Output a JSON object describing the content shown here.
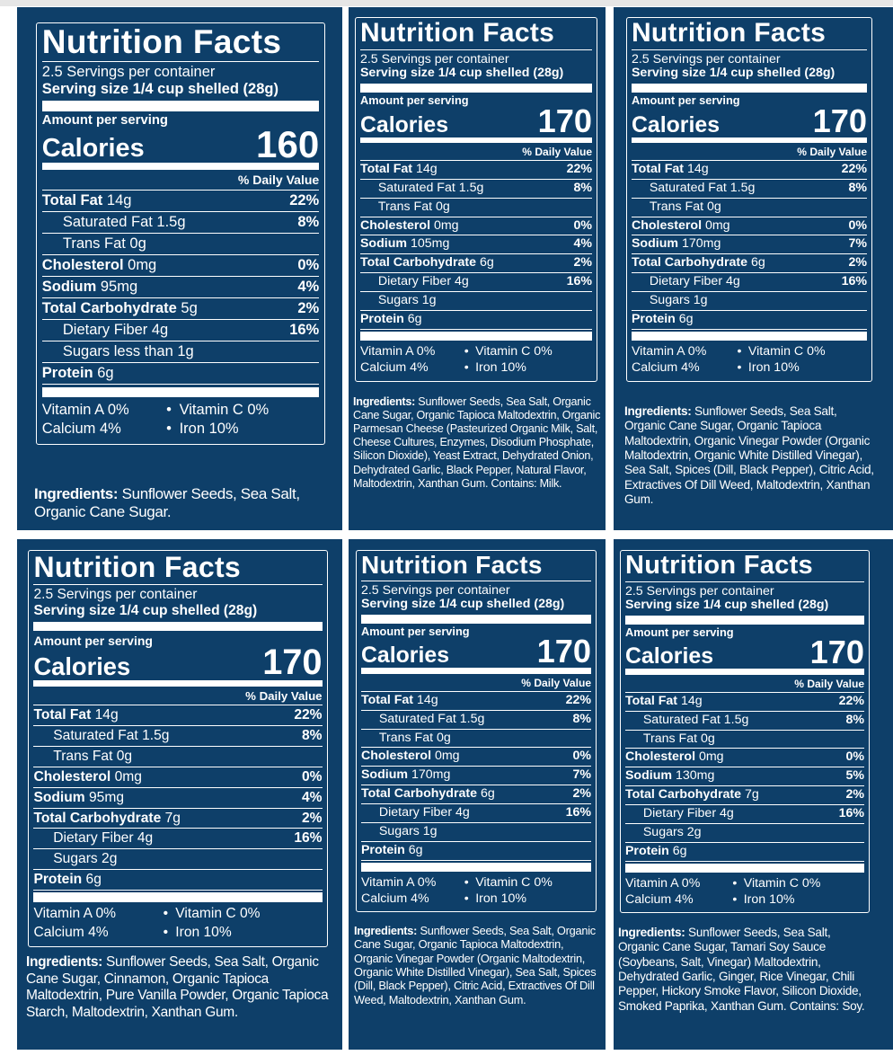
{
  "colors": {
    "background": "#0e3f69",
    "text": "#ffffff"
  },
  "common": {
    "title": "Nutrition Facts",
    "servings": "2.5 Servings per container",
    "serving_size": "Serving size 1/4 cup shelled (28g)",
    "amount": "Amount per serving",
    "calories_label": "Calories",
    "dv_header": "% Daily Value",
    "ingredients_label": "Ingredients:",
    "dot": "•"
  },
  "panels": [
    {
      "calories": "160",
      "rows": [
        {
          "label": "Total Fat",
          "amount": "14g",
          "dv": "22%",
          "bold": true,
          "indent": false
        },
        {
          "label": "Saturated Fat 1.5g",
          "amount": "",
          "dv": "8%",
          "bold": false,
          "indent": true
        },
        {
          "label": "Trans Fat 0g",
          "amount": "",
          "dv": "",
          "bold": false,
          "indent": true
        },
        {
          "label": "Cholesterol",
          "amount": "0mg",
          "dv": "0%",
          "bold": true,
          "indent": false
        },
        {
          "label": "Sodium",
          "amount": "95mg",
          "dv": "4%",
          "bold": true,
          "indent": false
        },
        {
          "label": "Total Carbohydrate",
          "amount": "5g",
          "dv": "2%",
          "bold": true,
          "indent": false
        },
        {
          "label": "Dietary Fiber 4g",
          "amount": "",
          "dv": "16%",
          "bold": false,
          "indent": true
        },
        {
          "label": "Sugars less than 1g",
          "amount": "",
          "dv": "",
          "bold": false,
          "indent": true
        },
        {
          "label": "Protein",
          "amount": "6g",
          "dv": "",
          "bold": true,
          "indent": false
        }
      ],
      "vitamins": [
        "Vitamin A 0%",
        "Vitamin C 0%",
        "Calcium 4%",
        "Iron 10%"
      ],
      "ingredients": "Sunflower Seeds, Sea Salt, Organic Cane Sugar."
    },
    {
      "calories": "170",
      "rows": [
        {
          "label": "Total Fat",
          "amount": "14g",
          "dv": "22%",
          "bold": true,
          "indent": false
        },
        {
          "label": "Saturated Fat 1.5g",
          "amount": "",
          "dv": "8%",
          "bold": false,
          "indent": true
        },
        {
          "label": "Trans Fat 0g",
          "amount": "",
          "dv": "",
          "bold": false,
          "indent": true
        },
        {
          "label": "Cholesterol",
          "amount": "0mg",
          "dv": "0%",
          "bold": true,
          "indent": false
        },
        {
          "label": "Sodium",
          "amount": "105mg",
          "dv": "4%",
          "bold": true,
          "indent": false
        },
        {
          "label": "Total Carbohydrate",
          "amount": "6g",
          "dv": "2%",
          "bold": true,
          "indent": false
        },
        {
          "label": "Dietary Fiber 4g",
          "amount": "",
          "dv": "16%",
          "bold": false,
          "indent": true
        },
        {
          "label": "Sugars 1g",
          "amount": "",
          "dv": "",
          "bold": false,
          "indent": true
        },
        {
          "label": "Protein",
          "amount": "6g",
          "dv": "",
          "bold": true,
          "indent": false
        }
      ],
      "vitamins": [
        "Vitamin A 0%",
        "Vitamin C 0%",
        "Calcium 4%",
        "Iron 10%"
      ],
      "ingredients": "Sunflower Seeds, Sea Salt, Organic Cane Sugar, Organic Tapioca Maltodextrin, Organic Parmesan Cheese (Pasteurized Organic Milk, Salt, Cheese Cultures, Enzymes, Disodium Phosphate, Silicon Dioxide), Yeast Extract, Dehydrated Onion, Dehydrated Garlic, Black Pepper, Natural Flavor, Maltodextrin, Xanthan Gum. Contains: Milk."
    },
    {
      "calories": "170",
      "rows": [
        {
          "label": "Total Fat",
          "amount": "14g",
          "dv": "22%",
          "bold": true,
          "indent": false
        },
        {
          "label": "Saturated Fat 1.5g",
          "amount": "",
          "dv": "8%",
          "bold": false,
          "indent": true
        },
        {
          "label": "Trans Fat 0g",
          "amount": "",
          "dv": "",
          "bold": false,
          "indent": true
        },
        {
          "label": "Cholesterol",
          "amount": "0mg",
          "dv": "0%",
          "bold": true,
          "indent": false
        },
        {
          "label": "Sodium",
          "amount": "170mg",
          "dv": "7%",
          "bold": true,
          "indent": false
        },
        {
          "label": "Total Carbohydrate",
          "amount": "6g",
          "dv": "2%",
          "bold": true,
          "indent": false
        },
        {
          "label": "Dietary Fiber 4g",
          "amount": "",
          "dv": "16%",
          "bold": false,
          "indent": true
        },
        {
          "label": "Sugars 1g",
          "amount": "",
          "dv": "",
          "bold": false,
          "indent": true
        },
        {
          "label": "Protein",
          "amount": "6g",
          "dv": "",
          "bold": true,
          "indent": false
        }
      ],
      "vitamins": [
        "Vitamin A 0%",
        "Vitamin C 0%",
        "Calcium 4%",
        "Iron 10%"
      ],
      "ingredients": "Sunflower Seeds, Sea Salt, Organic Cane Sugar, Organic Tapioca Maltodextrin, Organic Vinegar Powder (Organic Maltodextrin, Organic White Distilled Vinegar), Sea Salt, Spices (Dill, Black Pepper), Citric Acid, Extractives Of Dill Weed, Maltodextrin, Xanthan Gum."
    },
    {
      "calories": "170",
      "rows": [
        {
          "label": "Total Fat",
          "amount": "14g",
          "dv": "22%",
          "bold": true,
          "indent": false
        },
        {
          "label": "Saturated Fat 1.5g",
          "amount": "",
          "dv": "8%",
          "bold": false,
          "indent": true
        },
        {
          "label": "Trans Fat 0g",
          "amount": "",
          "dv": "",
          "bold": false,
          "indent": true
        },
        {
          "label": "Cholesterol",
          "amount": "0mg",
          "dv": "0%",
          "bold": true,
          "indent": false
        },
        {
          "label": "Sodium",
          "amount": "95mg",
          "dv": "4%",
          "bold": true,
          "indent": false
        },
        {
          "label": "Total Carbohydrate",
          "amount": "7g",
          "dv": "2%",
          "bold": true,
          "indent": false
        },
        {
          "label": "Dietary Fiber 4g",
          "amount": "",
          "dv": "16%",
          "bold": false,
          "indent": true
        },
        {
          "label": "Sugars 2g",
          "amount": "",
          "dv": "",
          "bold": false,
          "indent": true
        },
        {
          "label": "Protein",
          "amount": "6g",
          "dv": "",
          "bold": true,
          "indent": false
        }
      ],
      "vitamins": [
        "Vitamin A 0%",
        "Vitamin C 0%",
        "Calcium 4%",
        "Iron 10%"
      ],
      "ingredients": "Sunflower Seeds, Sea Salt, Organic Cane Sugar, Cinnamon, Organic Tapioca Maltodextrin, Pure Vanilla Powder, Organic Tapioca Starch, Maltodextrin, Xanthan Gum."
    },
    {
      "calories": "170",
      "rows": [
        {
          "label": "Total Fat",
          "amount": "14g",
          "dv": "22%",
          "bold": true,
          "indent": false
        },
        {
          "label": "Saturated Fat 1.5g",
          "amount": "",
          "dv": "8%",
          "bold": false,
          "indent": true
        },
        {
          "label": "Trans Fat 0g",
          "amount": "",
          "dv": "",
          "bold": false,
          "indent": true
        },
        {
          "label": "Cholesterol",
          "amount": "0mg",
          "dv": "0%",
          "bold": true,
          "indent": false
        },
        {
          "label": "Sodium",
          "amount": "170mg",
          "dv": "7%",
          "bold": true,
          "indent": false
        },
        {
          "label": "Total Carbohydrate",
          "amount": "6g",
          "dv": "2%",
          "bold": true,
          "indent": false
        },
        {
          "label": "Dietary Fiber 4g",
          "amount": "",
          "dv": "16%",
          "bold": false,
          "indent": true
        },
        {
          "label": "Sugars 1g",
          "amount": "",
          "dv": "",
          "bold": false,
          "indent": true
        },
        {
          "label": "Protein",
          "amount": "6g",
          "dv": "",
          "bold": true,
          "indent": false
        }
      ],
      "vitamins": [
        "Vitamin A 0%",
        "Vitamin C 0%",
        "Calcium 4%",
        "Iron 10%"
      ],
      "ingredients": "Sunflower Seeds, Sea Salt, Organic Cane Sugar, Organic Tapioca Maltodextrin, Organic Vinegar Powder (Organic Maltodextrin, Organic White Distilled Vinegar), Sea Salt, Spices (Dill, Black Pepper), Citric Acid, Extractives Of Dill Weed, Maltodextrin, Xanthan Gum."
    },
    {
      "calories": "170",
      "rows": [
        {
          "label": "Total Fat",
          "amount": "14g",
          "dv": "22%",
          "bold": true,
          "indent": false
        },
        {
          "label": "Saturated Fat 1.5g",
          "amount": "",
          "dv": "8%",
          "bold": false,
          "indent": true
        },
        {
          "label": "Trans Fat 0g",
          "amount": "",
          "dv": "",
          "bold": false,
          "indent": true
        },
        {
          "label": "Cholesterol",
          "amount": "0mg",
          "dv": "0%",
          "bold": true,
          "indent": false
        },
        {
          "label": "Sodium",
          "amount": "130mg",
          "dv": "5%",
          "bold": true,
          "indent": false
        },
        {
          "label": "Total Carbohydrate",
          "amount": "7g",
          "dv": "2%",
          "bold": true,
          "indent": false
        },
        {
          "label": "Dietary Fiber 4g",
          "amount": "",
          "dv": "16%",
          "bold": false,
          "indent": true
        },
        {
          "label": "Sugars 2g",
          "amount": "",
          "dv": "",
          "bold": false,
          "indent": true
        },
        {
          "label": "Protein",
          "amount": "6g",
          "dv": "",
          "bold": true,
          "indent": false
        }
      ],
      "vitamins": [
        "Vitamin A 0%",
        "Vitamin C 0%",
        "Calcium 4%",
        "Iron 10%"
      ],
      "ingredients": "Sunflower Seeds, Sea Salt, Organic Cane Sugar, Tamari Soy Sauce (Soybeans, Salt, Vinegar) Maltodextrin, Dehydrated Garlic, Ginger, Rice Vinegar, Chili Pepper, Hickory Smoke Flavor, Silicon Dioxide, Smoked Paprika, Xanthan Gum. Contains: Soy."
    }
  ]
}
